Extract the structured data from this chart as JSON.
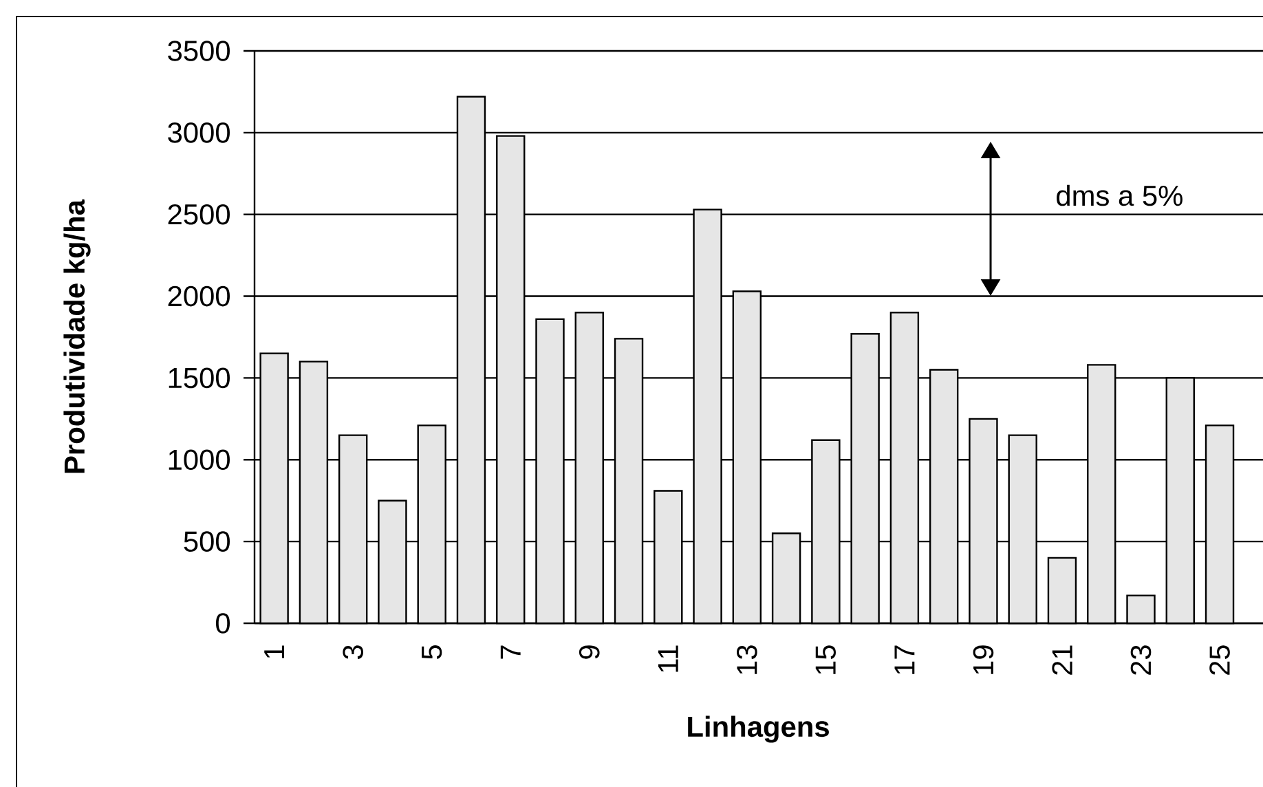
{
  "chart_data": {
    "type": "bar",
    "xlabel": "Linhagens",
    "ylabel": "Produtividade kg/ha",
    "categories": [
      "1",
      null,
      "3",
      null,
      "5",
      null,
      "7",
      null,
      "9",
      null,
      "11",
      null,
      "13",
      null,
      "15",
      null,
      "17",
      null,
      "19",
      null,
      "21",
      null,
      "23",
      null,
      "25"
    ],
    "values": [
      1650,
      1600,
      1150,
      750,
      1210,
      3220,
      2980,
      1860,
      1900,
      1740,
      810,
      2530,
      2030,
      550,
      1120,
      1770,
      1900,
      1550,
      1250,
      1150,
      400,
      1580,
      170,
      1500,
      1210
    ],
    "color": "#e6e6e6",
    "ylim": [
      0,
      3500
    ],
    "yticks": [
      0,
      500,
      1000,
      1500,
      2000,
      2500,
      3000,
      3500
    ],
    "grid": "y",
    "annotations": [
      "dms a 5%"
    ]
  }
}
